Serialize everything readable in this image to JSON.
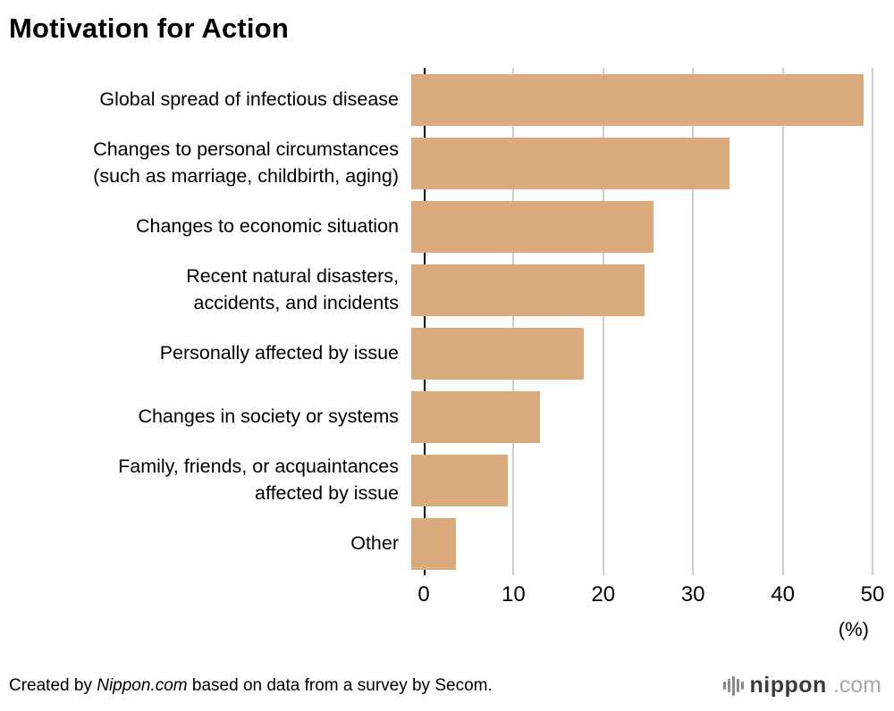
{
  "title": "Motivation for Action",
  "chart_data": {
    "type": "bar",
    "orientation": "horizontal",
    "title": "Motivation for Action",
    "categories": [
      "Global spread of infectious disease",
      "Changes to personal circumstances\n(such as marriage, childbirth, aging)",
      "Changes to economic situation",
      "Recent natural disasters,\naccidents, and incidents",
      "Personally affected by issue",
      "Changes in society or systems",
      "Family, friends, or acquaintances\naffected by issue",
      "Other"
    ],
    "values": [
      49,
      34.5,
      26.3,
      25.3,
      18.7,
      14,
      10.5,
      4.8
    ],
    "xlabel": "(%)",
    "ylabel": "",
    "xlim": [
      0,
      50
    ],
    "ticks": [
      0,
      10,
      20,
      30,
      40,
      50
    ],
    "grid": true,
    "bar_color": "#dcab7d",
    "gridline_color": "#cfcfcf",
    "axis_line_color": "#000000"
  },
  "axis": {
    "unit_label": "(%)"
  },
  "footer": {
    "credit_prefix": "Created by ",
    "credit_source": "Nippon.com",
    "credit_suffix": " based on data from a survey by Secom.",
    "logo_main": "nippon",
    "logo_tld": ".com"
  }
}
